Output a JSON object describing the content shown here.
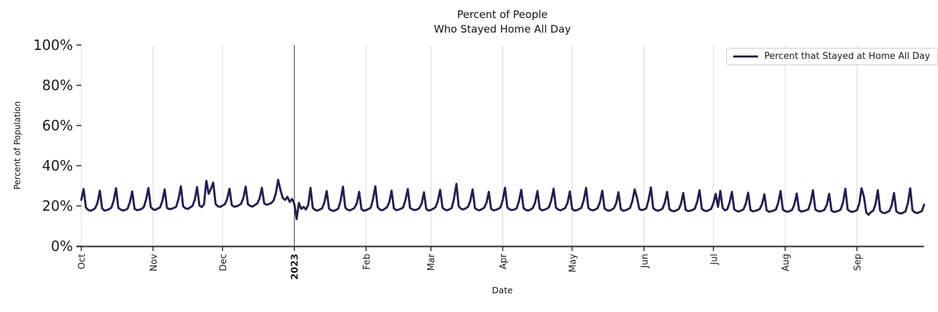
{
  "figure": {
    "title_line1": "Percent of People",
    "title_line2": "Who Stayed Home All Day",
    "xlabel": "Date",
    "ylabel": "Percent of Population",
    "legend": {
      "label": "Percent that Stayed at Home All Day",
      "swatch_color": "#20204e",
      "position": "upper right"
    }
  },
  "colors": {
    "line": "#20204e",
    "gridline": "#d9d9d9",
    "year_vline": "#3f3f3f",
    "axis": "#262626",
    "text": "#1a1a1a"
  },
  "chart_data": {
    "type": "line",
    "title": "Percent of People\nWho Stayed Home All Day",
    "xlabel": "Date",
    "ylabel": "Percent of Population",
    "ylim": [
      0,
      100
    ],
    "grid": "vertical-monthly-only",
    "legend_position": "upper right",
    "x_unit": "days since 2022-10-01 (daily data, Oct 2022 - Sep 2023)",
    "x_range_days": [
      0,
      364
    ],
    "y_ticks": [
      {
        "label": "0%",
        "value": 0
      },
      {
        "label": "20%",
        "value": 20
      },
      {
        "label": "40%",
        "value": 40
      },
      {
        "label": "60%",
        "value": 60
      },
      {
        "label": "80%",
        "value": 80
      },
      {
        "label": "100%",
        "value": 100
      }
    ],
    "x_ticks": [
      {
        "label": "Oct",
        "day": 0,
        "bold": false
      },
      {
        "label": "Nov",
        "day": 31,
        "bold": false
      },
      {
        "label": "Dec",
        "day": 61,
        "bold": false
      },
      {
        "label": "2023",
        "day": 92,
        "bold": true
      },
      {
        "label": "Feb",
        "day": 123,
        "bold": false
      },
      {
        "label": "Mar",
        "day": 151,
        "bold": false
      },
      {
        "label": "Apr",
        "day": 182,
        "bold": false
      },
      {
        "label": "May",
        "day": 212,
        "bold": false
      },
      {
        "label": "Jun",
        "day": 243,
        "bold": false
      },
      {
        "label": "Jul",
        "day": 273,
        "bold": false
      },
      {
        "label": "Aug",
        "day": 304,
        "bold": false
      },
      {
        "label": "Sep",
        "day": 335,
        "bold": false
      }
    ],
    "annotations": [
      {
        "type": "vline",
        "label": "2023 (Jan 1)",
        "day": 92,
        "color": "#3f3f3f"
      }
    ],
    "series": [
      {
        "name": "Percent that Stayed at Home All Day",
        "color": "#20204e",
        "line_width": 3,
        "start_day": 0,
        "values": [
          23.0,
          28.4,
          19.2,
          18.0,
          17.6,
          18.1,
          18.9,
          21.5,
          27.6,
          18.8,
          17.7,
          17.9,
          18.4,
          19.1,
          22.8,
          28.8,
          19.0,
          18.2,
          17.7,
          18.0,
          18.6,
          21.9,
          27.2,
          18.6,
          17.9,
          18.1,
          18.5,
          19.4,
          23.2,
          28.9,
          19.4,
          18.3,
          18.0,
          18.7,
          19.2,
          22.4,
          28.2,
          19.0,
          18.4,
          18.6,
          19.0,
          19.6,
          23.6,
          29.8,
          19.8,
          18.8,
          18.5,
          19.2,
          20.0,
          23.0,
          29.4,
          20.2,
          19.4,
          20.8,
          32.5,
          26.0,
          28.6,
          31.6,
          21.0,
          19.8,
          19.5,
          20.2,
          20.8,
          23.4,
          28.6,
          20.4,
          19.6,
          19.8,
          20.3,
          21.0,
          24.0,
          29.6,
          20.8,
          20.0,
          19.7,
          20.5,
          21.2,
          23.8,
          29.0,
          21.2,
          20.6,
          20.9,
          21.4,
          22.6,
          26.0,
          33.0,
          28.0,
          24.0,
          23.0,
          24.5,
          22.0,
          23.5,
          21.0,
          13.5,
          21.5,
          18.5,
          19.5,
          18.2,
          20.5,
          29.0,
          19.0,
          18.0,
          17.7,
          18.2,
          18.8,
          21.8,
          27.4,
          18.6,
          17.8,
          17.5,
          18.0,
          18.7,
          22.6,
          29.6,
          19.2,
          18.1,
          17.8,
          18.3,
          19.0,
          21.4,
          27.0,
          18.4,
          17.6,
          17.9,
          18.4,
          19.1,
          23.4,
          29.8,
          19.4,
          18.2,
          17.8,
          18.5,
          19.3,
          21.8,
          27.6,
          18.8,
          17.9,
          18.1,
          18.6,
          19.2,
          22.9,
          28.4,
          19.0,
          18.3,
          17.9,
          18.2,
          18.9,
          21.2,
          26.8,
          18.5,
          17.7,
          18.0,
          18.6,
          19.4,
          22.5,
          28.0,
          19.1,
          18.2,
          17.8,
          18.3,
          19.0,
          23.8,
          31.0,
          19.8,
          18.6,
          18.2,
          18.8,
          19.5,
          22.4,
          28.2,
          19.0,
          18.1,
          17.8,
          18.4,
          19.1,
          21.6,
          27.0,
          18.6,
          17.8,
          18.0,
          18.5,
          19.2,
          22.8,
          29.0,
          19.2,
          18.3,
          17.9,
          18.2,
          18.8,
          22.2,
          28.0,
          18.9,
          18.0,
          17.7,
          18.2,
          18.9,
          21.8,
          27.4,
          18.6,
          17.8,
          18.1,
          18.6,
          19.3,
          22.9,
          28.6,
          19.1,
          18.2,
          17.8,
          18.3,
          19.0,
          21.5,
          27.2,
          18.5,
          17.7,
          17.9,
          18.4,
          19.1,
          22.8,
          29.0,
          19.0,
          18.1,
          17.8,
          18.2,
          18.9,
          21.9,
          27.6,
          18.7,
          17.9,
          17.6,
          18.1,
          18.8,
          21.3,
          26.8,
          18.4,
          17.6,
          17.8,
          18.3,
          19.0,
          22.4,
          28.2,
          24.0,
          18.5,
          17.9,
          18.2,
          18.8,
          22.9,
          29.2,
          18.9,
          18.0,
          17.6,
          18.0,
          18.6,
          21.6,
          27.0,
          18.4,
          17.6,
          17.3,
          17.8,
          18.4,
          21.0,
          26.4,
          18.1,
          17.4,
          17.6,
          18.0,
          18.7,
          22.0,
          27.8,
          18.6,
          17.7,
          17.4,
          17.9,
          18.5,
          21.4,
          26.0,
          19.5,
          27.5,
          19.0,
          17.8,
          18.3,
          21.8,
          27.0,
          18.3,
          17.5,
          17.2,
          17.7,
          18.3,
          21.2,
          26.6,
          18.0,
          17.3,
          17.5,
          17.9,
          18.5,
          20.8,
          25.8,
          17.8,
          17.1,
          17.3,
          17.7,
          18.2,
          21.6,
          27.4,
          18.2,
          17.4,
          17.1,
          17.5,
          18.1,
          20.9,
          26.2,
          17.9,
          17.2,
          17.4,
          17.8,
          18.3,
          21.8,
          27.8,
          18.3,
          17.5,
          17.2,
          17.6,
          18.1,
          20.6,
          26.0,
          17.7,
          17.0,
          17.2,
          17.6,
          18.2,
          21.9,
          28.6,
          18.2,
          17.3,
          17.0,
          17.4,
          17.9,
          21.2,
          28.8,
          24.5,
          16.8,
          15.6,
          16.9,
          17.6,
          20.8,
          27.8,
          17.6,
          16.7,
          16.4,
          16.9,
          17.5,
          20.2,
          26.4,
          17.3,
          16.5,
          16.2,
          16.7,
          17.3,
          21.4,
          28.8,
          17.8,
          16.8,
          16.4,
          16.9,
          17.4,
          20.6
        ]
      }
    ]
  }
}
